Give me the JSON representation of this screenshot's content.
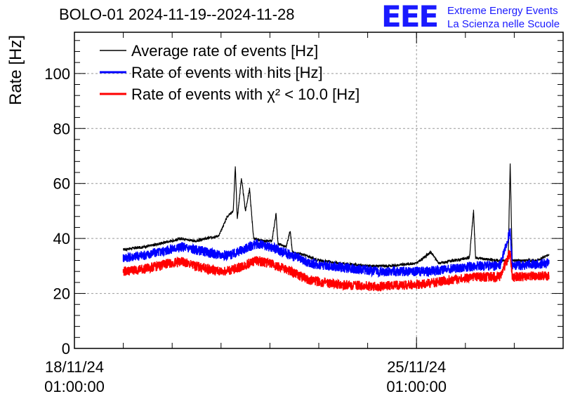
{
  "header": {
    "title": "BOLO-01 2024-11-19--2024-11-28",
    "logo_mark": "EEE",
    "logo_line1": "Extreme Energy Events",
    "logo_line2": "La Scienza nelle Scuole"
  },
  "chart_data": {
    "type": "line",
    "title": "BOLO-01 2024-11-19--2024-11-28",
    "ylabel": "Rate [Hz]",
    "xlabel": "",
    "ylim": [
      0,
      115
    ],
    "yticks": [
      0,
      20,
      40,
      60,
      80,
      100
    ],
    "xlim": [
      "2024-11-18 01:00:00",
      "2024-11-28 01:00:00"
    ],
    "xticks": [
      {
        "x": "2024-11-18 01:00:00",
        "label": "18/11/24\n01:00:00"
      },
      {
        "x": "2024-11-25 01:00:00",
        "label": "25/11/24\n01:00:00"
      }
    ],
    "grid": true,
    "legend_position": "top-left",
    "series": [
      {
        "name": "Average rate of events [Hz]",
        "color": "#000000",
        "points": [
          [
            "2024-11-19 01:00",
            36
          ],
          [
            "2024-11-19 12:00",
            37
          ],
          [
            "2024-11-20 00:00",
            39
          ],
          [
            "2024-11-20 06:00",
            40
          ],
          [
            "2024-11-20 12:00",
            39
          ],
          [
            "2024-11-21 00:00",
            41
          ],
          [
            "2024-11-21 04:00",
            48
          ],
          [
            "2024-11-21 07:00",
            50
          ],
          [
            "2024-11-21 08:00",
            66
          ],
          [
            "2024-11-21 09:00",
            47
          ],
          [
            "2024-11-21 11:00",
            62
          ],
          [
            "2024-11-21 13:00",
            50
          ],
          [
            "2024-11-21 15:00",
            58
          ],
          [
            "2024-11-21 17:00",
            40
          ],
          [
            "2024-11-21 22:00",
            39
          ],
          [
            "2024-11-22 02:00",
            39
          ],
          [
            "2024-11-22 04:00",
            49
          ],
          [
            "2024-11-22 05:00",
            38
          ],
          [
            "2024-11-22 09:00",
            37
          ],
          [
            "2024-11-22 11:00",
            43
          ],
          [
            "2024-11-22 12:00",
            35
          ],
          [
            "2024-11-22 18:00",
            34
          ],
          [
            "2024-11-23 01:00",
            32
          ],
          [
            "2024-11-23 12:00",
            31
          ],
          [
            "2024-11-24 00:00",
            30
          ],
          [
            "2024-11-24 12:00",
            30
          ],
          [
            "2024-11-25 01:00",
            31
          ],
          [
            "2024-11-25 08:00",
            35
          ],
          [
            "2024-11-25 12:00",
            31
          ],
          [
            "2024-11-25 20:00",
            32
          ],
          [
            "2024-11-26 03:00",
            33
          ],
          [
            "2024-11-26 05:00",
            50
          ],
          [
            "2024-11-26 06:00",
            33
          ],
          [
            "2024-11-26 16:00",
            32
          ],
          [
            "2024-11-26 22:00",
            32
          ],
          [
            "2024-11-26 23:00",
            67
          ],
          [
            "2024-11-27 00:00",
            32
          ],
          [
            "2024-11-27 12:00",
            32
          ],
          [
            "2024-11-27 18:00",
            34
          ]
        ]
      },
      {
        "name": "Rate of events with hits [Hz]",
        "color": "#0000ff",
        "points": [
          [
            "2024-11-19 01:00",
            33
          ],
          [
            "2024-11-19 12:00",
            34
          ],
          [
            "2024-11-20 00:00",
            36
          ],
          [
            "2024-11-20 06:00",
            37
          ],
          [
            "2024-11-20 12:00",
            36
          ],
          [
            "2024-11-21 00:00",
            34
          ],
          [
            "2024-11-21 06:00",
            34
          ],
          [
            "2024-11-21 12:00",
            36
          ],
          [
            "2024-11-21 18:00",
            38
          ],
          [
            "2024-11-22 01:00",
            37
          ],
          [
            "2024-11-22 08:00",
            35
          ],
          [
            "2024-11-22 14:00",
            33
          ],
          [
            "2024-11-22 20:00",
            31
          ],
          [
            "2024-11-23 06:00",
            30
          ],
          [
            "2024-11-23 18:00",
            29
          ],
          [
            "2024-11-24 06:00",
            28
          ],
          [
            "2024-11-24 18:00",
            28
          ],
          [
            "2024-11-25 06:00",
            28
          ],
          [
            "2024-11-25 18:00",
            29
          ],
          [
            "2024-11-26 06:00",
            30
          ],
          [
            "2024-11-26 18:00",
            30
          ],
          [
            "2024-11-26 23:00",
            43
          ],
          [
            "2024-11-27 00:00",
            30
          ],
          [
            "2024-11-27 18:00",
            31
          ]
        ]
      },
      {
        "name": "Rate of events with χ² < 10.0 [Hz]",
        "color": "#ff0000",
        "points": [
          [
            "2024-11-19 01:00",
            28
          ],
          [
            "2024-11-19 12:00",
            29
          ],
          [
            "2024-11-20 00:00",
            31
          ],
          [
            "2024-11-20 06:00",
            31.5
          ],
          [
            "2024-11-20 12:00",
            30
          ],
          [
            "2024-11-21 00:00",
            28
          ],
          [
            "2024-11-21 06:00",
            28.5
          ],
          [
            "2024-11-21 12:00",
            30
          ],
          [
            "2024-11-21 18:00",
            32
          ],
          [
            "2024-11-22 01:00",
            31
          ],
          [
            "2024-11-22 08:00",
            29
          ],
          [
            "2024-11-22 14:00",
            27
          ],
          [
            "2024-11-22 20:00",
            25
          ],
          [
            "2024-11-23 06:00",
            23.5
          ],
          [
            "2024-11-23 18:00",
            23
          ],
          [
            "2024-11-24 06:00",
            22.5
          ],
          [
            "2024-11-24 18:00",
            23
          ],
          [
            "2024-11-25 06:00",
            23.5
          ],
          [
            "2024-11-25 18:00",
            25
          ],
          [
            "2024-11-26 06:00",
            26
          ],
          [
            "2024-11-26 18:00",
            26
          ],
          [
            "2024-11-26 23:00",
            35
          ],
          [
            "2024-11-27 00:00",
            26
          ],
          [
            "2024-11-27 18:00",
            26.5
          ]
        ]
      }
    ],
    "band_halfwidth": [
      0.5,
      1.8,
      1.8
    ]
  }
}
